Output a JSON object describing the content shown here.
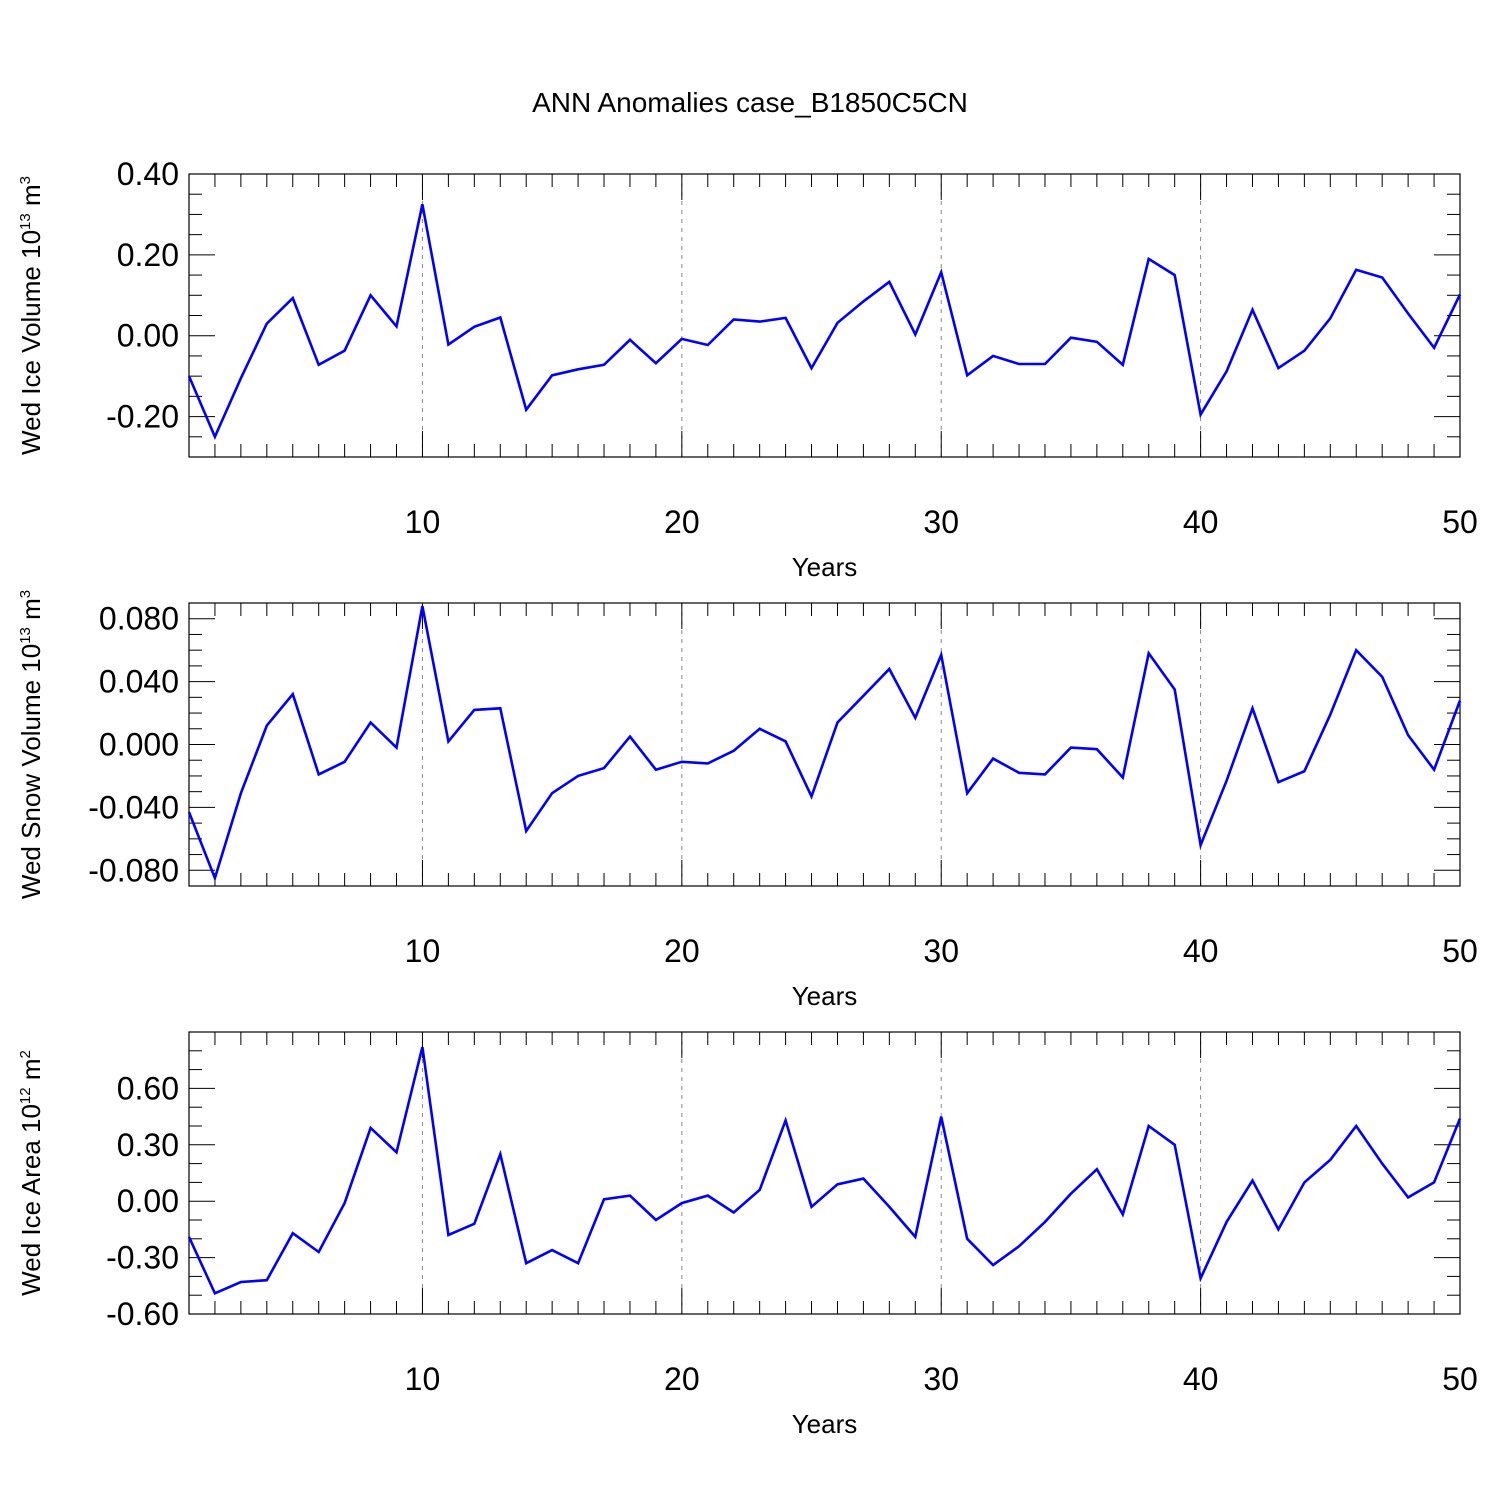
{
  "title": "ANN Anomalies case_B1850C5CN",
  "chart_data": [
    {
      "type": "line",
      "ylabel": {
        "base": "Wed Ice Volume 10",
        "exp": "13",
        "unit": " m",
        "unit_exp": "3"
      },
      "xlabel": "Years",
      "xlim": [
        1,
        50
      ],
      "ylim": [
        -0.3,
        0.4
      ],
      "yticks": [
        "0.40",
        "0.20",
        "0.00",
        "-0.20"
      ],
      "yticks_values": [
        0.4,
        0.2,
        0.0,
        -0.2
      ],
      "yminor_step": 0.05,
      "xticks": [
        "10",
        "20",
        "30",
        "40",
        "50"
      ],
      "xticks_values": [
        10,
        20,
        30,
        40,
        50
      ],
      "vgrid": [
        10,
        20,
        30,
        40
      ],
      "line_color": "#0000ff",
      "x": [
        1,
        2,
        3,
        4,
        5,
        6,
        7,
        8,
        9,
        10,
        11,
        12,
        13,
        14,
        15,
        16,
        17,
        18,
        19,
        20,
        21,
        22,
        23,
        24,
        25,
        26,
        27,
        28,
        29,
        30,
        31,
        32,
        33,
        34,
        35,
        36,
        37,
        38,
        39,
        40,
        41,
        42,
        43,
        44,
        45,
        46,
        47,
        48,
        49,
        50
      ],
      "y": [
        -0.1,
        -0.25,
        -0.105,
        0.03,
        0.093,
        -0.072,
        -0.037,
        0.1,
        0.023,
        0.325,
        -0.022,
        0.022,
        0.045,
        -0.183,
        -0.098,
        -0.083,
        -0.072,
        -0.01,
        -0.068,
        -0.008,
        -0.023,
        0.04,
        0.035,
        0.044,
        -0.08,
        0.032,
        0.085,
        0.133,
        0.003,
        0.157,
        -0.098,
        -0.05,
        -0.07,
        -0.07,
        -0.005,
        -0.015,
        -0.072,
        0.19,
        0.15,
        -0.195,
        -0.088,
        0.064,
        -0.08,
        -0.037,
        0.043,
        0.163,
        0.144,
        0.055,
        -0.03,
        0.102
      ]
    },
    {
      "type": "line",
      "ylabel": {
        "base": "Wed Snow Volume 10",
        "exp": "13",
        "unit": " m",
        "unit_exp": "3"
      },
      "xlabel": "Years",
      "xlim": [
        1,
        50
      ],
      "ylim": [
        -0.09,
        0.09
      ],
      "yticks": [
        "0.080",
        "0.040",
        "0.000",
        "-0.040",
        "-0.080"
      ],
      "yticks_values": [
        0.08,
        0.04,
        0.0,
        -0.04,
        -0.08
      ],
      "yminor_step": 0.01,
      "xticks": [
        "10",
        "20",
        "30",
        "40",
        "50"
      ],
      "xticks_values": [
        10,
        20,
        30,
        40,
        50
      ],
      "vgrid": [
        10,
        20,
        30,
        40
      ],
      "line_color": "#0000ff",
      "x": [
        1,
        2,
        3,
        4,
        5,
        6,
        7,
        8,
        9,
        10,
        11,
        12,
        13,
        14,
        15,
        16,
        17,
        18,
        19,
        20,
        21,
        22,
        23,
        24,
        25,
        26,
        27,
        28,
        29,
        30,
        31,
        32,
        33,
        34,
        35,
        36,
        37,
        38,
        39,
        40,
        41,
        42,
        43,
        44,
        45,
        46,
        47,
        48,
        49,
        50
      ],
      "y": [
        -0.043,
        -0.085,
        -0.031,
        0.012,
        0.032,
        -0.019,
        -0.011,
        0.014,
        -0.002,
        0.088,
        0.002,
        0.022,
        0.023,
        -0.055,
        -0.031,
        -0.02,
        -0.015,
        0.005,
        -0.016,
        -0.011,
        -0.012,
        -0.004,
        0.01,
        0.002,
        -0.033,
        0.014,
        0.031,
        0.048,
        0.017,
        0.057,
        -0.031,
        -0.009,
        -0.018,
        -0.019,
        -0.002,
        -0.003,
        -0.021,
        0.058,
        0.035,
        -0.064,
        -0.023,
        0.023,
        -0.024,
        -0.017,
        0.019,
        0.06,
        0.043,
        0.006,
        -0.016,
        0.028
      ]
    },
    {
      "type": "line",
      "ylabel": {
        "base": "Wed Ice Area 10",
        "exp": "12",
        "unit": " m",
        "unit_exp": "2"
      },
      "xlabel": "Years",
      "xlim": [
        1,
        50
      ],
      "ylim": [
        -0.6,
        0.9
      ],
      "yticks": [
        "0.60",
        "0.30",
        "0.00",
        "-0.30",
        "-0.60"
      ],
      "yticks_values": [
        0.6,
        0.3,
        0.0,
        -0.3,
        -0.6
      ],
      "yminor_step": 0.1,
      "xticks": [
        "10",
        "20",
        "30",
        "40",
        "50"
      ],
      "xticks_values": [
        10,
        20,
        30,
        40,
        50
      ],
      "vgrid": [
        10,
        20,
        30,
        40
      ],
      "line_color": "#0000ff",
      "x": [
        1,
        2,
        3,
        4,
        5,
        6,
        7,
        8,
        9,
        10,
        11,
        12,
        13,
        14,
        15,
        16,
        17,
        18,
        19,
        20,
        21,
        22,
        23,
        24,
        25,
        26,
        27,
        28,
        29,
        30,
        31,
        32,
        33,
        34,
        35,
        36,
        37,
        38,
        39,
        40,
        41,
        42,
        43,
        44,
        45,
        46,
        47,
        48,
        49,
        50
      ],
      "y": [
        -0.19,
        -0.49,
        -0.43,
        -0.42,
        -0.17,
        -0.27,
        -0.01,
        0.39,
        0.26,
        0.82,
        -0.18,
        -0.12,
        0.25,
        -0.33,
        -0.26,
        -0.33,
        0.01,
        0.03,
        -0.1,
        -0.01,
        0.03,
        -0.06,
        0.06,
        0.43,
        -0.03,
        0.09,
        0.12,
        -0.03,
        -0.19,
        0.45,
        -0.2,
        -0.34,
        -0.24,
        -0.11,
        0.04,
        0.17,
        -0.07,
        0.4,
        0.3,
        -0.41,
        -0.11,
        0.11,
        -0.15,
        0.1,
        0.22,
        0.4,
        0.2,
        0.02,
        0.1,
        0.44
      ]
    }
  ]
}
